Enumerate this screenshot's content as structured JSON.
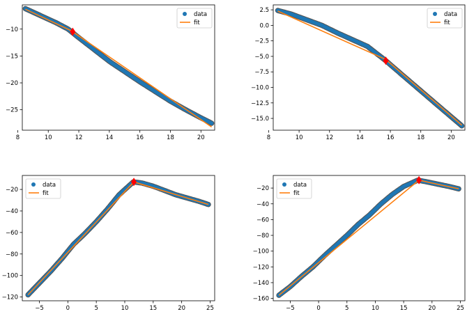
{
  "chart_data": [
    {
      "type": "scatter",
      "xlim": [
        8.3,
        20.9
      ],
      "ylim": [
        -28.8,
        -5.5
      ],
      "x_ticks": [
        8,
        10,
        12,
        14,
        16,
        18,
        20
      ],
      "y_ticks": [
        -10,
        -15,
        -20,
        -25
      ],
      "grid": false,
      "legend_placement": "top-right",
      "legend": [
        "data",
        "fit"
      ],
      "series": [
        {
          "name": "data",
          "style": "markers",
          "color": "#1f77b4",
          "x": [
            8.5,
            9.5,
            10.5,
            11.3,
            12.0,
            13.0,
            14.0,
            15.0,
            16.0,
            17.0,
            18.0,
            19.0,
            20.0,
            20.7
          ],
          "y": [
            -6.2,
            -7.5,
            -8.8,
            -10.0,
            -11.6,
            -13.8,
            -16.0,
            -17.9,
            -19.8,
            -21.6,
            -23.4,
            -25.0,
            -26.5,
            -27.5
          ]
        },
        {
          "name": "fit",
          "style": "line",
          "color": "#ff7f0e",
          "x": [
            8.5,
            11.5,
            20.7
          ],
          "y": [
            -6.3,
            -10.3,
            -28.2
          ]
        },
        {
          "name": "breakpoint",
          "style": "diamond",
          "color": "#ff0000",
          "x": [
            11.6
          ],
          "y": [
            -10.5
          ]
        }
      ]
    },
    {
      "type": "scatter",
      "xlim": [
        8.3,
        20.9
      ],
      "ylim": [
        -16.9,
        3.3
      ],
      "x_ticks": [
        8,
        10,
        12,
        14,
        16,
        18,
        20
      ],
      "y_ticks": [
        2.5,
        0.0,
        -2.5,
        -5.0,
        -7.5,
        -10.0,
        -12.5,
        -15.0
      ],
      "y_tick_labels": [
        "2.5",
        "0.0",
        "−2.5",
        "−5.0",
        "−7.5",
        "−10.0",
        "−12.5",
        "−15.0"
      ],
      "grid": false,
      "legend_placement": "top-right",
      "legend": [
        "data",
        "fit"
      ],
      "series": [
        {
          "name": "data",
          "style": "markers",
          "color": "#1f77b4",
          "x": [
            8.6,
            9.5,
            10.5,
            11.5,
            12.5,
            13.5,
            14.5,
            15.7,
            16.5,
            17.5,
            18.5,
            19.5,
            20.7
          ],
          "y": [
            2.4,
            1.8,
            0.9,
            0.0,
            -1.2,
            -2.3,
            -3.4,
            -5.7,
            -7.4,
            -9.5,
            -11.6,
            -13.7,
            -16.2
          ]
        },
        {
          "name": "fit",
          "style": "line",
          "color": "#ff7f0e",
          "x": [
            8.6,
            15.7,
            20.7
          ],
          "y": [
            2.3,
            -5.5,
            -16.1
          ]
        },
        {
          "name": "breakpoint",
          "style": "diamond",
          "color": "#ff0000",
          "x": [
            15.7
          ],
          "y": [
            -5.7
          ]
        }
      ]
    },
    {
      "type": "scatter",
      "xlim": [
        -8.0,
        25.8
      ],
      "ylim": [
        -123.5,
        -7.0
      ],
      "x_ticks": [
        -5,
        0,
        5,
        10,
        15,
        20,
        25
      ],
      "y_ticks": [
        -20,
        -40,
        -60,
        -80,
        -100,
        -120
      ],
      "grid": false,
      "legend_placement": "top-left",
      "legend": [
        "data",
        "fit"
      ],
      "series": [
        {
          "name": "data",
          "style": "markers",
          "color": "#1f77b4",
          "x": [
            -7.0,
            -5.0,
            -3.0,
            -1.0,
            1.0,
            3.0,
            5.0,
            7.0,
            9.0,
            11.5,
            13.0,
            15.0,
            17.0,
            19.0,
            21.0,
            23.0,
            24.7
          ],
          "y": [
            -118.0,
            -107.0,
            -96.0,
            -84.0,
            -71.0,
            -61.0,
            -50.0,
            -38.0,
            -25.0,
            -13.0,
            -14.0,
            -17.0,
            -21.0,
            -25.0,
            -28.0,
            -31.0,
            -34.0
          ]
        },
        {
          "name": "fit",
          "style": "line",
          "color": "#ff7f0e",
          "x": [
            -7.0,
            11.6,
            24.7
          ],
          "y": [
            -118.0,
            -13.0,
            -34.0
          ]
        },
        {
          "name": "breakpoint",
          "style": "diamond",
          "color": "#ff0000",
          "x": [
            11.6
          ],
          "y": [
            -13.0
          ]
        }
      ]
    },
    {
      "type": "scatter",
      "xlim": [
        -8.0,
        25.8
      ],
      "ylim": [
        -163.0,
        -4.0
      ],
      "x_ticks": [
        -5,
        0,
        5,
        10,
        15,
        20,
        25
      ],
      "y_ticks": [
        -20,
        -40,
        -60,
        -80,
        -100,
        -120,
        -140,
        -160
      ],
      "grid": false,
      "legend_placement": "top-left",
      "legend": [
        "data",
        "fit"
      ],
      "series": [
        {
          "name": "data",
          "style": "markers",
          "color": "#1f77b4",
          "x": [
            -7.0,
            -5.0,
            -3.0,
            -1.0,
            1.0,
            3.0,
            5.0,
            7.0,
            9.0,
            11.0,
            13.0,
            15.0,
            17.5,
            19.0,
            21.0,
            23.0,
            24.7
          ],
          "y": [
            -156.0,
            -145.0,
            -132.0,
            -120.0,
            -106.0,
            -93.0,
            -80.0,
            -66.0,
            -54.0,
            -40.0,
            -28.0,
            -18.0,
            -10.0,
            -12.0,
            -15.0,
            -18.0,
            -21.0
          ]
        },
        {
          "name": "fit",
          "style": "line",
          "color": "#ff7f0e",
          "x": [
            -7.0,
            17.7,
            24.7
          ],
          "y": [
            -156.0,
            -10.0,
            -21.0
          ]
        },
        {
          "name": "breakpoint",
          "style": "diamond",
          "color": "#ff0000",
          "x": [
            17.7
          ],
          "y": [
            -10.0
          ]
        }
      ]
    }
  ]
}
